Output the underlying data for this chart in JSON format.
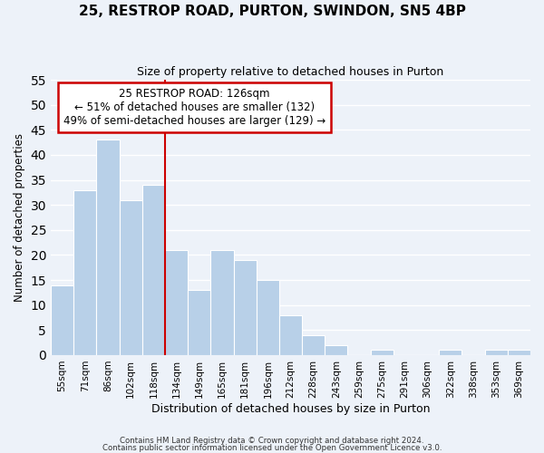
{
  "title": "25, RESTROP ROAD, PURTON, SWINDON, SN5 4BP",
  "subtitle": "Size of property relative to detached houses in Purton",
  "xlabel": "Distribution of detached houses by size in Purton",
  "ylabel": "Number of detached properties",
  "bar_labels": [
    "55sqm",
    "71sqm",
    "86sqm",
    "102sqm",
    "118sqm",
    "134sqm",
    "149sqm",
    "165sqm",
    "181sqm",
    "196sqm",
    "212sqm",
    "228sqm",
    "243sqm",
    "259sqm",
    "275sqm",
    "291sqm",
    "306sqm",
    "322sqm",
    "338sqm",
    "353sqm",
    "369sqm"
  ],
  "bar_values": [
    14,
    33,
    43,
    31,
    34,
    21,
    13,
    21,
    19,
    15,
    8,
    4,
    2,
    0,
    1,
    0,
    0,
    1,
    0,
    1,
    1
  ],
  "bar_color": "#b8d0e8",
  "vline_x": 4.5,
  "vline_color": "#cc0000",
  "ylim": [
    0,
    55
  ],
  "yticks": [
    0,
    5,
    10,
    15,
    20,
    25,
    30,
    35,
    40,
    45,
    50,
    55
  ],
  "annotation_title": "25 RESTROP ROAD: 126sqm",
  "annotation_line1": "← 51% of detached houses are smaller (132)",
  "annotation_line2": "49% of semi-detached houses are larger (129) →",
  "annotation_box_color": "white",
  "annotation_box_edge": "#cc0000",
  "footer1": "Contains HM Land Registry data © Crown copyright and database right 2024.",
  "footer2": "Contains public sector information licensed under the Open Government Licence v3.0.",
  "background_color": "#edf2f9"
}
